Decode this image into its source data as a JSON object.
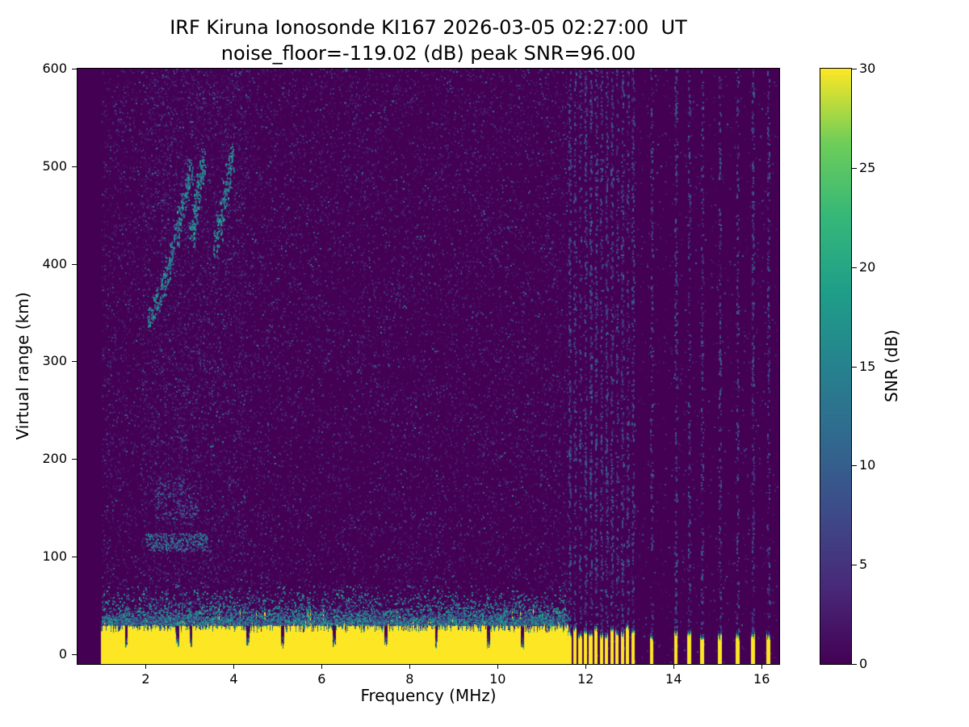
{
  "chart_data": {
    "type": "heatmap",
    "title": "IRF Kiruna Ionosonde KI167 2026-03-05 02:27:00  UT",
    "subtitle": "noise_floor=-119.02 (dB) peak SNR=96.00",
    "station": "IRF Kiruna Ionosonde KI167",
    "timestamp_ut": "2026-03-05 02:27:00",
    "noise_floor_db": -119.02,
    "peak_snr_db": 96.0,
    "xlabel": "Frequency (MHz)",
    "ylabel": "Virtual range (km)",
    "xlim": [
      0.45,
      16.4
    ],
    "ylim": [
      -10,
      600
    ],
    "xticks": [
      2,
      4,
      6,
      8,
      10,
      12,
      14,
      16
    ],
    "yticks": [
      0,
      100,
      200,
      300,
      400,
      500,
      600
    ],
    "grid": false,
    "colorbar": {
      "label": "SNR (dB)",
      "min": 0,
      "max": 30,
      "ticks": [
        0,
        5,
        10,
        15,
        20,
        25,
        30
      ],
      "colormap": "viridis",
      "low_hex": "#440154",
      "high_hex": "#fde725",
      "position": "right"
    },
    "data_extent": {
      "freq_mhz": [
        1.0,
        16.35
      ],
      "range_km": [
        -10,
        600
      ]
    },
    "features": {
      "background_snr_db": 0,
      "noise_speckle": {
        "left_region_density": 0.045,
        "right_region_density": 0.008,
        "snr_db_max": 16
      },
      "ground_band": {
        "snr_db": 30,
        "freq_start_mhz": 1.0,
        "solid_until_mhz": 11.6,
        "top_km_typical": 30,
        "striped": {
          "from_mhz": 11.6,
          "to_mhz": 13.1,
          "period_mhz": 0.12,
          "bar_width_mhz": 0.06
        },
        "sparse_bar_freqs_mhz": [
          13.5,
          14.05,
          14.35,
          14.65,
          15.05,
          15.45,
          15.8,
          16.15
        ],
        "notch_freqs_mhz": [
          1.55,
          2.72,
          3.02,
          4.32,
          5.1,
          6.28,
          7.45,
          8.6,
          9.78,
          10.55
        ]
      },
      "f_region_trace": {
        "snr_db_range": [
          8,
          20
        ],
        "segments": [
          {
            "points": [
              [
                2.1,
                348
              ],
              [
                2.2,
                356
              ],
              [
                2.3,
                366
              ],
              [
                2.4,
                380
              ],
              [
                2.5,
                395
              ],
              [
                2.6,
                412
              ],
              [
                2.7,
                430
              ],
              [
                2.78,
                447
              ],
              [
                2.86,
                462
              ],
              [
                2.93,
                478
              ],
              [
                3.0,
                495
              ]
            ]
          },
          {
            "points": [
              [
                3.05,
                430
              ],
              [
                3.1,
                448
              ],
              [
                3.15,
                464
              ],
              [
                3.2,
                480
              ],
              [
                3.25,
                495
              ],
              [
                3.3,
                505
              ]
            ]
          },
          {
            "points": [
              [
                3.6,
                420
              ],
              [
                3.68,
                438
              ],
              [
                3.75,
                455
              ],
              [
                3.82,
                472
              ],
              [
                3.88,
                490
              ],
              [
                3.94,
                507
              ]
            ]
          }
        ]
      },
      "e_region_echoes": [
        {
          "freq_mhz": [
            2.0,
            3.4
          ],
          "range_km": 115,
          "spread_km": 9,
          "snr_db_range": [
            6,
            16
          ]
        },
        {
          "freq_mhz": [
            2.2,
            3.2
          ],
          "range_km": 152,
          "spread_km": 14,
          "snr_db_range": [
            4,
            12
          ]
        },
        {
          "freq_mhz": [
            2.2,
            3.0
          ],
          "range_km": 172,
          "spread_km": 8,
          "snr_db_range": [
            4,
            10
          ]
        }
      ]
    }
  }
}
